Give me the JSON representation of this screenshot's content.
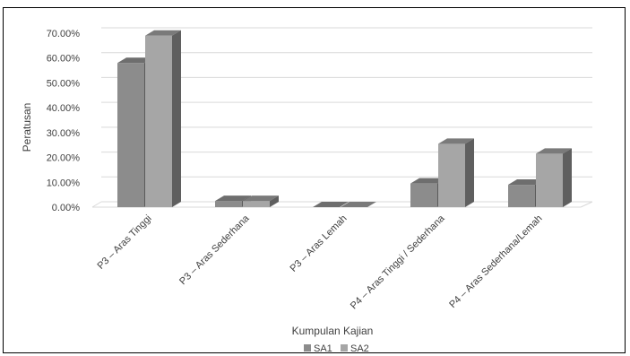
{
  "chart_data": {
    "type": "bar",
    "style": "3d-clustered-column",
    "categories": [
      "P3 – Aras Tinggi",
      "P3 – Aras Sederhana",
      "P3 – Aras Lemah",
      "P4 – Aras Tinggi / Sederhana",
      "P4 – Aras Sederhana/Lemah"
    ],
    "series": [
      {
        "name": "SA1",
        "values": [
          0.58,
          0.025,
          0.0,
          0.095,
          0.09
        ],
        "color": "#8c8c8c",
        "top_color": "#6e6e6e",
        "side_color": "#5a5a5a"
      },
      {
        "name": "SA2",
        "values": [
          0.69,
          0.025,
          0.0,
          0.255,
          0.215
        ],
        "color": "#a6a6a6",
        "top_color": "#7a7a7a",
        "side_color": "#5f5f5f"
      }
    ],
    "yticks": [
      "0.00%",
      "10.00%",
      "20.00%",
      "30.00%",
      "40.00%",
      "50.00%",
      "60.00%",
      "70.00%"
    ],
    "ylim": [
      0,
      0.7
    ],
    "xlabel": "Kumpulan Kajian",
    "ylabel": "Peratusan",
    "legend": "bottom",
    "grid": true
  }
}
